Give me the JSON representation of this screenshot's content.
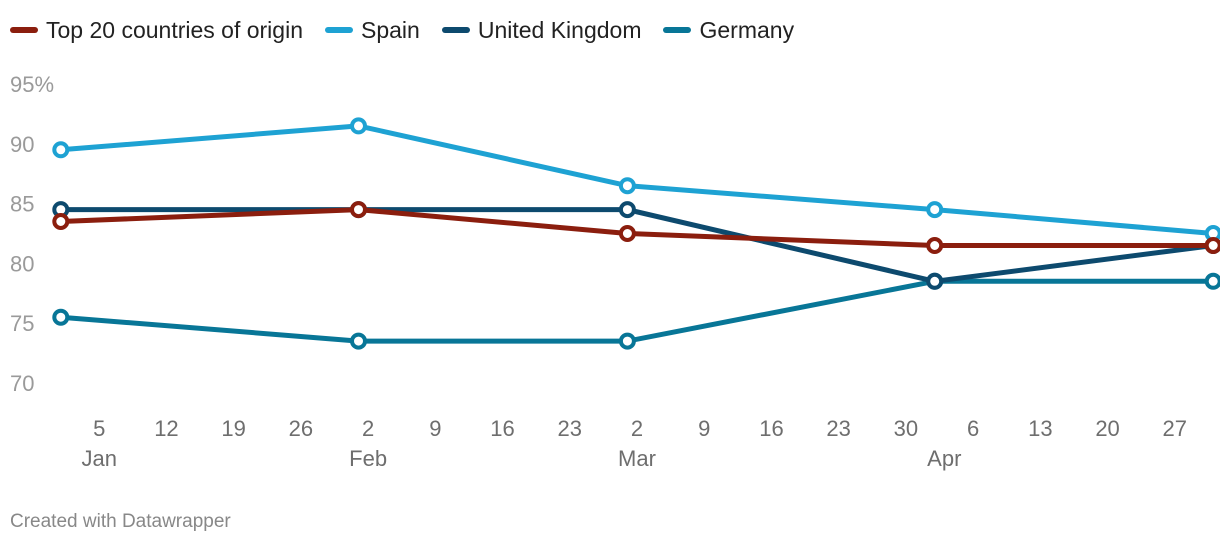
{
  "chart_data": {
    "type": "line",
    "title": "",
    "xlabel": "",
    "ylabel": "",
    "ylim": [
      70,
      95
    ],
    "y_ticks": [
      "95%",
      "90",
      "85",
      "80",
      "75",
      "70"
    ],
    "y_tick_values": [
      95,
      90,
      85,
      80,
      75,
      70
    ],
    "x_ticks": [
      {
        "label": "5",
        "day": 5
      },
      {
        "label": "12",
        "day": 12
      },
      {
        "label": "19",
        "day": 19
      },
      {
        "label": "26",
        "day": 26
      },
      {
        "label": "2",
        "day": 33
      },
      {
        "label": "9",
        "day": 40
      },
      {
        "label": "16",
        "day": 47
      },
      {
        "label": "23",
        "day": 54
      },
      {
        "label": "2",
        "day": 61
      },
      {
        "label": "9",
        "day": 68
      },
      {
        "label": "16",
        "day": 75
      },
      {
        "label": "23",
        "day": 82
      },
      {
        "label": "30",
        "day": 89
      },
      {
        "label": "6",
        "day": 96
      },
      {
        "label": "13",
        "day": 103
      },
      {
        "label": "20",
        "day": 110
      },
      {
        "label": "27",
        "day": 117
      }
    ],
    "x_months": [
      {
        "label": "Jan",
        "day": 5
      },
      {
        "label": "Feb",
        "day": 33
      },
      {
        "label": "Mar",
        "day": 61
      },
      {
        "label": "Apr",
        "day": 93
      }
    ],
    "x_domain": [
      0.5,
      121.5
    ],
    "x_days": [
      1,
      32,
      60,
      92,
      121
    ],
    "series": [
      {
        "name": "Top 20 countries of origin",
        "color": "#8b1e0e",
        "values": [
          83.5,
          84.5,
          82.5,
          81.5,
          81.5
        ]
      },
      {
        "name": "Spain",
        "color": "#1ea2d3",
        "values": [
          89.5,
          91.5,
          86.5,
          84.5,
          82.5
        ]
      },
      {
        "name": "United Kingdom",
        "color": "#0d4a6e",
        "values": [
          84.5,
          84.5,
          84.5,
          78.5,
          81.5
        ]
      },
      {
        "name": "Germany",
        "color": "#087697",
        "values": [
          75.5,
          73.5,
          73.5,
          78.5,
          78.5
        ]
      }
    ],
    "draw_order": [
      3,
      2,
      1,
      0
    ],
    "legend_position": "top-left",
    "grid": false
  },
  "credit": "Created with Datawrapper"
}
